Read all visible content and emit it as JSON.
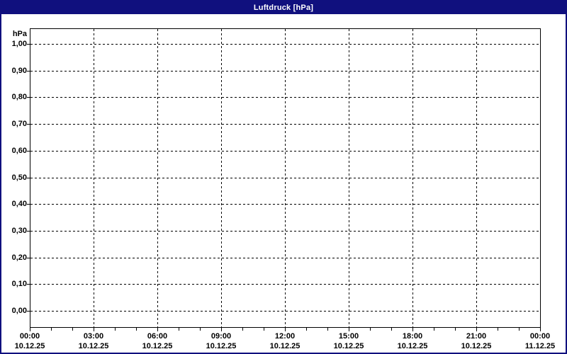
{
  "window": {
    "title": "Luftdruck [hPa]"
  },
  "colors": {
    "titlebar_bg": "#10107e",
    "titlebar_text": "#ffffff",
    "window_border": "#10107e",
    "plot_frame": "#000000",
    "grid": "#000000",
    "tick_label": "#000000",
    "plot_bg": "#ffffff"
  },
  "chart_data": {
    "type": "line",
    "title": "Luftdruck [hPa]",
    "ylabel": "hPa",
    "xlabel": "",
    "ylim": [
      0.0,
      1.0
    ],
    "y_tick_step": 0.1,
    "y_tick_labels": [
      "1,00",
      "0,90",
      "0,80",
      "0,70",
      "0,60",
      "0,50",
      "0,40",
      "0,30",
      "0,20",
      "0,10",
      "0,00"
    ],
    "x_range": [
      "00:00 10.12.25",
      "00:00 11.12.25"
    ],
    "x_major_interval_hours": 3,
    "x_minor_interval_hours": 1,
    "x_ticks": [
      {
        "time": "00:00",
        "date": "10.12.25"
      },
      {
        "time": "03:00",
        "date": "10.12.25"
      },
      {
        "time": "06:00",
        "date": "10.12.25"
      },
      {
        "time": "09:00",
        "date": "10.12.25"
      },
      {
        "time": "12:00",
        "date": "10.12.25"
      },
      {
        "time": "15:00",
        "date": "10.12.25"
      },
      {
        "time": "18:00",
        "date": "10.12.25"
      },
      {
        "time": "21:00",
        "date": "10.12.25"
      },
      {
        "time": "00:00",
        "date": "11.12.25"
      }
    ],
    "grid": "dashed",
    "legend": "none",
    "series": []
  }
}
